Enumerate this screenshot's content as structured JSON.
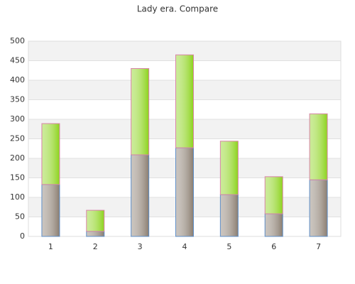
{
  "chart_data": {
    "type": "stacked-bar",
    "title": "Lady era. Compare",
    "categories": [
      "1",
      "2",
      "3",
      "4",
      "5",
      "6",
      "7"
    ],
    "series": [
      {
        "color": "#8a7d70",
        "edgecolor": "#5f8fc8",
        "values": [
          133,
          13,
          209,
          227,
          107,
          58,
          145
        ]
      },
      {
        "color": "#8cd31c",
        "edgecolor": "#d884a8",
        "values": [
          156,
          54,
          221,
          238,
          137,
          95,
          169
        ]
      }
    ],
    "ylim": [
      0,
      500
    ],
    "yticks": [
      0,
      50,
      100,
      150,
      200,
      250,
      300,
      350,
      400,
      450,
      500
    ],
    "grid": true
  }
}
